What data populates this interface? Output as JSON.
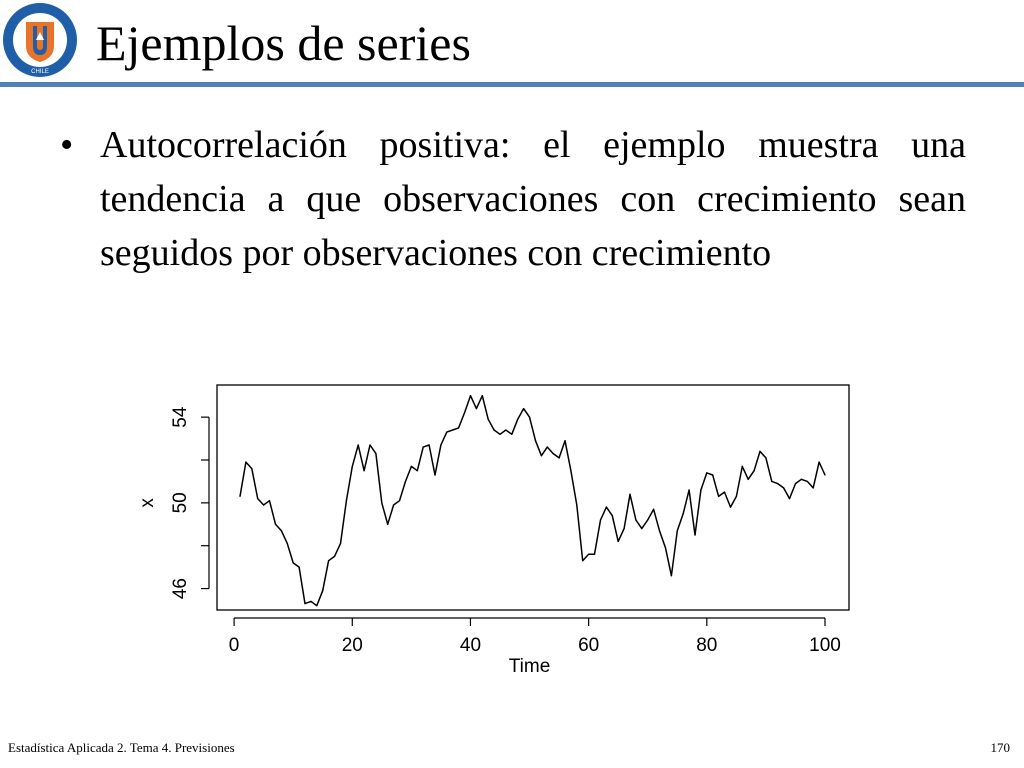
{
  "slide": {
    "title": "Ejemplos de series",
    "bullet": "Autocorrelación positiva: el ejemplo muestra una tendencia a que observaciones con crecimiento sean seguidos por observaciones con crecimiento",
    "bullet_marker": "•",
    "logo_text": "UNIVERSIDAD CATÓLICA DEL NORTE · CHILE",
    "logo_colors": {
      "ring": "#1f5fa8",
      "shield": "#e8742a",
      "accent": "#ffffff"
    }
  },
  "footer": {
    "left": "Estadística Aplicada 2. Tema 4. Previsiones",
    "page_number": "170"
  },
  "chart_data": {
    "type": "line",
    "xlabel": "Time",
    "ylabel": "x",
    "xlim": [
      1,
      100
    ],
    "ylim": [
      45,
      55.5
    ],
    "xticks": [
      0,
      20,
      40,
      60,
      80,
      100
    ],
    "yticks": [
      46,
      50,
      54
    ],
    "x": [
      1,
      2,
      3,
      4,
      5,
      6,
      7,
      8,
      9,
      10,
      11,
      12,
      13,
      14,
      15,
      16,
      17,
      18,
      19,
      20,
      21,
      22,
      23,
      24,
      25,
      26,
      27,
      28,
      29,
      30,
      31,
      32,
      33,
      34,
      35,
      36,
      37,
      38,
      39,
      40,
      41,
      42,
      43,
      44,
      45,
      46,
      47,
      48,
      49,
      50,
      51,
      52,
      53,
      54,
      55,
      56,
      57,
      58,
      59,
      60,
      61,
      62,
      63,
      64,
      65,
      66,
      67,
      68,
      69,
      70,
      71,
      72,
      73,
      74,
      75,
      76,
      77,
      78,
      79,
      80,
      81,
      82,
      83,
      84,
      85,
      86,
      87,
      88,
      89,
      90,
      91,
      92,
      93,
      94,
      95,
      96,
      97,
      98,
      99,
      100
    ],
    "values": [
      50.3,
      51.9,
      51.6,
      50.2,
      49.9,
      50.1,
      49.0,
      48.7,
      48.1,
      47.2,
      47.0,
      45.3,
      45.4,
      45.2,
      45.9,
      47.3,
      47.5,
      48.1,
      50.1,
      51.7,
      52.7,
      51.5,
      52.7,
      52.3,
      50.0,
      49.0,
      49.9,
      50.1,
      51.0,
      51.7,
      51.5,
      52.6,
      52.7,
      51.3,
      52.7,
      53.3,
      53.4,
      53.5,
      54.2,
      55.0,
      54.4,
      55.0,
      53.9,
      53.4,
      53.2,
      53.4,
      53.2,
      53.9,
      54.4,
      54.0,
      52.9,
      52.2,
      52.6,
      52.3,
      52.1,
      52.9,
      51.5,
      49.9,
      47.3,
      47.6,
      47.6,
      49.2,
      49.8,
      49.4,
      48.2,
      48.8,
      50.4,
      49.2,
      48.8,
      49.2,
      49.7,
      48.7,
      47.9,
      46.6,
      48.7,
      49.5,
      50.6,
      48.5,
      50.6,
      51.4,
      51.3,
      50.3,
      50.5,
      49.8,
      50.3,
      51.7,
      51.1,
      51.5,
      52.4,
      52.1,
      51.0,
      50.9,
      50.7,
      50.2,
      50.9,
      51.1,
      51.0,
      50.7,
      51.9,
      51.3
    ],
    "line_color": "#000000",
    "grid": false,
    "legend": "none"
  }
}
